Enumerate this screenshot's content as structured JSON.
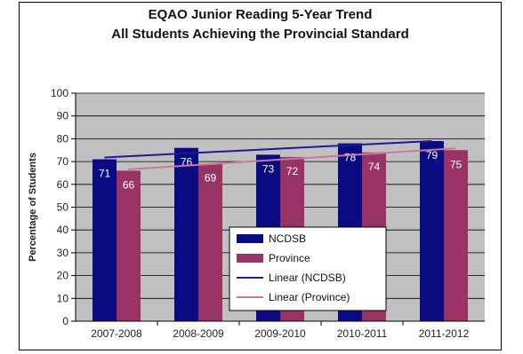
{
  "chart_data": {
    "type": "bar",
    "title": "EQAO Junior Reading 5-Year Trend",
    "subtitle": "All Students Achieving the Provincial Standard",
    "ylabel": "Percentage of Students",
    "xlabel": "",
    "categories": [
      "2007-2008",
      "2008-2009",
      "2009-2010",
      "2010-2011",
      "2011-2012"
    ],
    "ylim": [
      0,
      100
    ],
    "yticks": [
      0,
      10,
      20,
      30,
      40,
      50,
      60,
      70,
      80,
      90,
      100
    ],
    "series": [
      {
        "name": "NCDSB",
        "values": [
          71,
          76,
          73,
          78,
          79
        ],
        "color": "#0a0a82"
      },
      {
        "name": "Province",
        "values": [
          66,
          69,
          72,
          74,
          75
        ],
        "color": "#993366"
      }
    ],
    "trendlines": [
      {
        "name": "Linear (NCDSB)",
        "of": "NCDSB",
        "color": "#1a1a9a"
      },
      {
        "name": "Linear (Province)",
        "of": "Province",
        "color": "#c47a9a"
      }
    ],
    "grid": true,
    "legend_position": "bottom-center",
    "plot_background": "#c0c0c0"
  }
}
